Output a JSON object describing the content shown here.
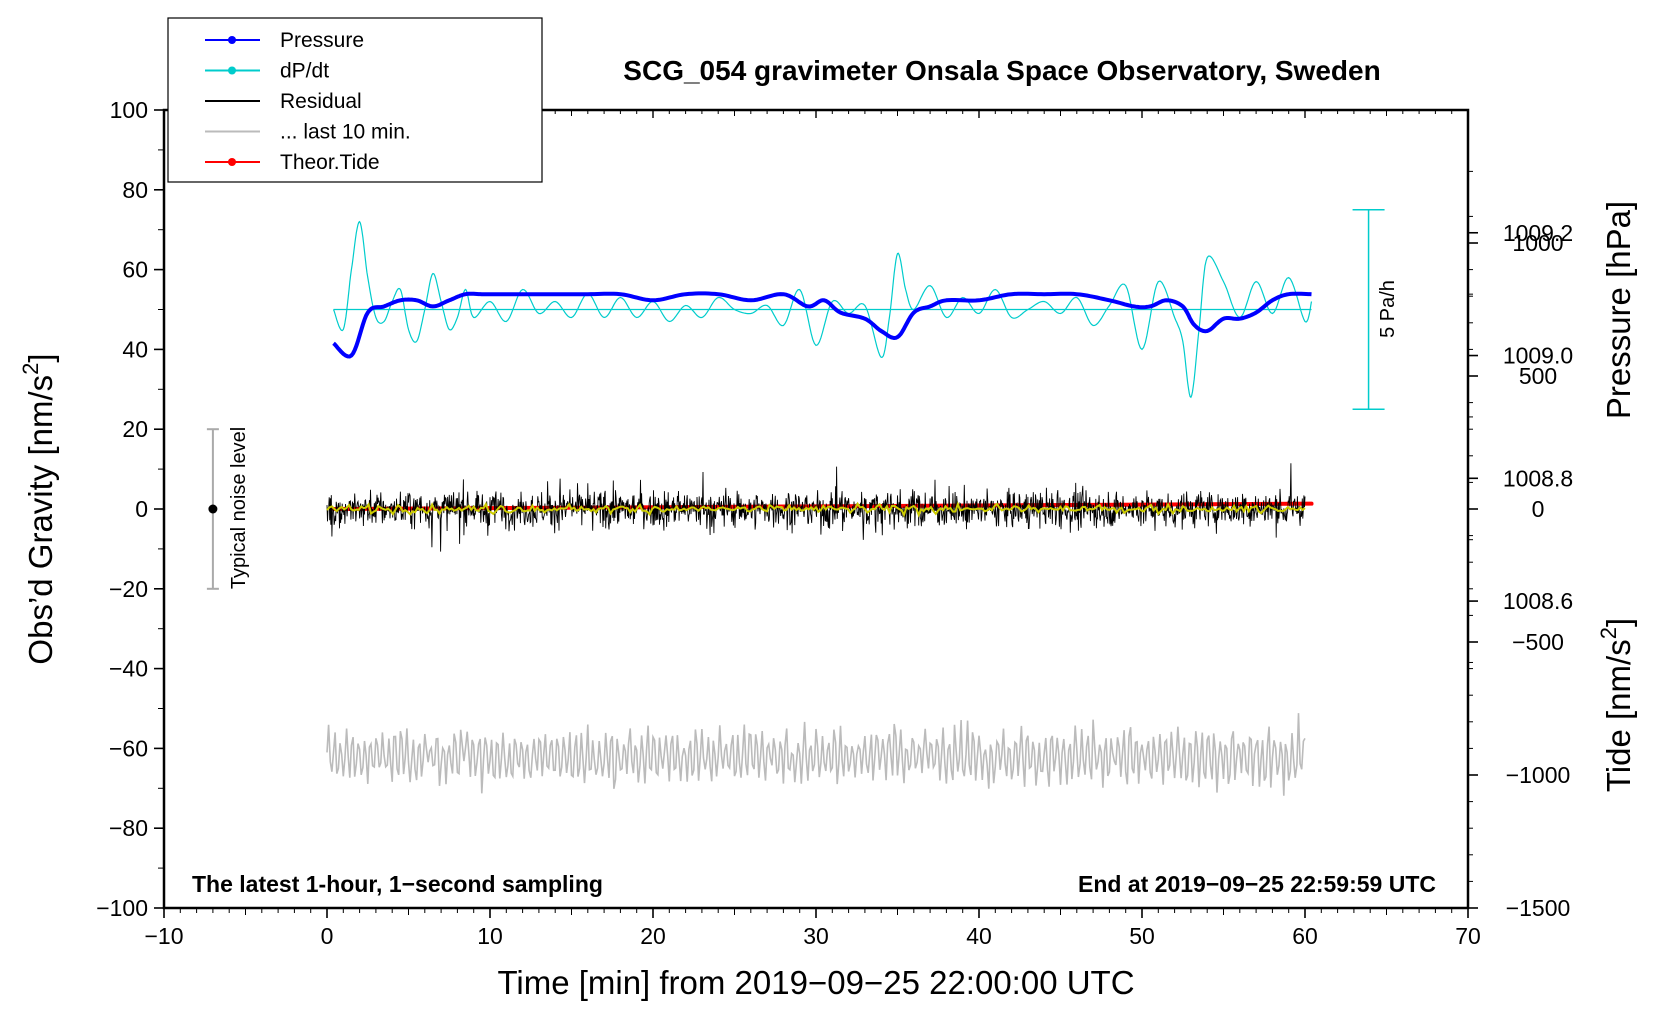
{
  "chart_data": {
    "type": "line",
    "title": "SCG_054 gravimeter Onsala Space Observatory, Sweden",
    "xlabel": "Time [min] from 2019−09−25 22:00:00 UTC",
    "ylabel_left": "Obs’d Gravity [nm/s²]",
    "ylabel_left_main": "Obs’d Gravity [nm/s",
    "ylabel_right_pressure_main": "Pressure [hPa]",
    "ylabel_right_tide_main": "Tide [nm/s",
    "sup2": "2",
    "close_bracket": "]",
    "xlim": [
      -10,
      70
    ],
    "ylim_left": [
      -100,
      100
    ],
    "pressure_ylim": [
      1008.1,
      1009.4
    ],
    "tide_ylim": [
      -1500,
      1500
    ],
    "x_ticks": [
      -10,
      0,
      10,
      20,
      30,
      40,
      50,
      60,
      70
    ],
    "x_tick_labels": [
      "−10",
      "0",
      "10",
      "20",
      "30",
      "40",
      "50",
      "60",
      "70"
    ],
    "y_left_ticks": [
      -100,
      -80,
      -60,
      -40,
      -20,
      0,
      20,
      40,
      60,
      80,
      100
    ],
    "y_left_tick_labels": [
      "−100",
      "−80",
      "−60",
      "−40",
      "−20",
      "0",
      "20",
      "40",
      "60",
      "80",
      "100"
    ],
    "pressure_ticks": [
      1008.6,
      1008.8,
      1009.0,
      1009.2
    ],
    "pressure_tick_labels": [
      "1008.6",
      "1008.8",
      "1009.0",
      "1009.2"
    ],
    "tide_ticks": [
      -1500,
      -1000,
      -500,
      0,
      500,
      1000
    ],
    "tide_tick_labels": [
      "−1500",
      "−1000",
      "−500",
      "0",
      "500",
      "1000"
    ],
    "annotations": {
      "bottom_left": "The latest 1-hour, 1−second sampling",
      "bottom_right": "End at 2019−09−25 22:59:59 UTC",
      "noise_label": "Typical noise level",
      "dpdt_scale": "5 Pa/h"
    },
    "noise_bar": {
      "x": -7,
      "y_center": 0,
      "y_min": -20,
      "y_max": 20
    },
    "dpdt_scale_bar": {
      "x": 63.9,
      "y_min": 25,
      "y_max": 75
    },
    "legend": [
      {
        "label": "Pressure",
        "color": "#0000ff",
        "marker": true
      },
      {
        "label": "dP/dt",
        "color": "#00cccc",
        "marker": true
      },
      {
        "label": "Residual",
        "color": "#000000",
        "marker": false
      },
      {
        "label": "... last 10 min.",
        "color": "#bbbbbb",
        "marker": false
      },
      {
        "label": "Theor.Tide",
        "color": "#ff0000",
        "marker": true
      }
    ],
    "series": [
      {
        "name": "Pressure",
        "color": "#0000ff",
        "unit": "hPa (right axis)",
        "x": [
          0.4,
          1.5,
          2.5,
          3.5,
          4.5,
          5.5,
          6.5,
          7.5,
          8.5,
          9.5,
          10.5,
          12,
          14,
          16,
          18,
          20,
          22,
          24,
          26,
          28,
          29.5,
          30.5,
          31.5,
          33,
          34,
          35,
          36,
          37,
          38,
          40,
          42,
          44,
          46,
          48,
          49.5,
          50.5,
          51.5,
          52.5,
          53.2,
          54,
          55,
          56,
          57,
          58,
          59,
          60.4
        ],
        "values": [
          1009.02,
          1009.0,
          1009.07,
          1009.08,
          1009.09,
          1009.09,
          1009.08,
          1009.09,
          1009.1,
          1009.1,
          1009.1,
          1009.1,
          1009.1,
          1009.1,
          1009.1,
          1009.09,
          1009.1,
          1009.1,
          1009.09,
          1009.1,
          1009.08,
          1009.09,
          1009.07,
          1009.06,
          1009.04,
          1009.03,
          1009.07,
          1009.08,
          1009.09,
          1009.09,
          1009.1,
          1009.1,
          1009.1,
          1009.09,
          1009.08,
          1009.08,
          1009.09,
          1009.08,
          1009.05,
          1009.04,
          1009.06,
          1009.06,
          1009.07,
          1009.09,
          1009.1,
          1009.1
        ]
      },
      {
        "name": "dP/dt",
        "color": "#00cccc",
        "unit": "nm/s²-scaled, baseline 50",
        "x": [
          0.4,
          1,
          1.5,
          2,
          2.5,
          3,
          3.5,
          4,
          4.5,
          5,
          5.5,
          6,
          6.5,
          7,
          7.5,
          8,
          8.5,
          9,
          10,
          11,
          12,
          13,
          14,
          15,
          16,
          17,
          18,
          19,
          20,
          21,
          22,
          23,
          24,
          25,
          26,
          27,
          28,
          29,
          30,
          31,
          32,
          33,
          34,
          34.5,
          35,
          35.5,
          36,
          37,
          38,
          39,
          40,
          41,
          42,
          43,
          44,
          45,
          46,
          47,
          48,
          49,
          50,
          51,
          52,
          52.5,
          53,
          53.5,
          54,
          55,
          56,
          57,
          58,
          59,
          60,
          60.4
        ],
        "values": [
          50,
          45,
          60,
          72,
          58,
          48,
          47,
          52,
          55,
          45,
          42,
          50,
          59,
          52,
          45,
          48,
          55,
          48,
          52,
          47,
          55,
          49,
          52,
          48,
          54,
          48,
          53,
          48,
          52,
          47,
          51,
          48,
          53,
          50,
          49,
          51,
          46,
          55,
          41,
          52,
          49,
          51,
          38,
          48,
          64,
          55,
          50,
          56,
          48,
          53,
          49,
          55,
          48,
          50,
          52,
          49,
          53,
          46,
          51,
          56,
          40,
          57,
          48,
          42,
          28,
          45,
          63,
          57,
          48,
          57,
          49,
          58,
          47,
          52
        ]
      },
      {
        "name": "Residual",
        "color": "#000000",
        "unit": "nm/s²",
        "x_range": [
          0,
          60
        ],
        "range": [
          -13,
          16
        ],
        "typical_amplitude": 8
      },
      {
        "name": "Residual (smoothed)",
        "color": "#cccc00",
        "unit": "nm/s²",
        "x_range": [
          0,
          60
        ],
        "range": [
          -2,
          2
        ]
      },
      {
        "name": "... last 10 min.",
        "color": "#bbbbbb",
        "unit": "nm/s²",
        "x_range": [
          0,
          60
        ],
        "center": -62,
        "range": [
          -73,
          -48
        ]
      },
      {
        "name": "Theor.Tide",
        "color": "#ff0000",
        "unit": "nm/s² (tide axis)",
        "x": [
          0.4,
          60.4
        ],
        "values": [
          0,
          20
        ]
      }
    ]
  }
}
